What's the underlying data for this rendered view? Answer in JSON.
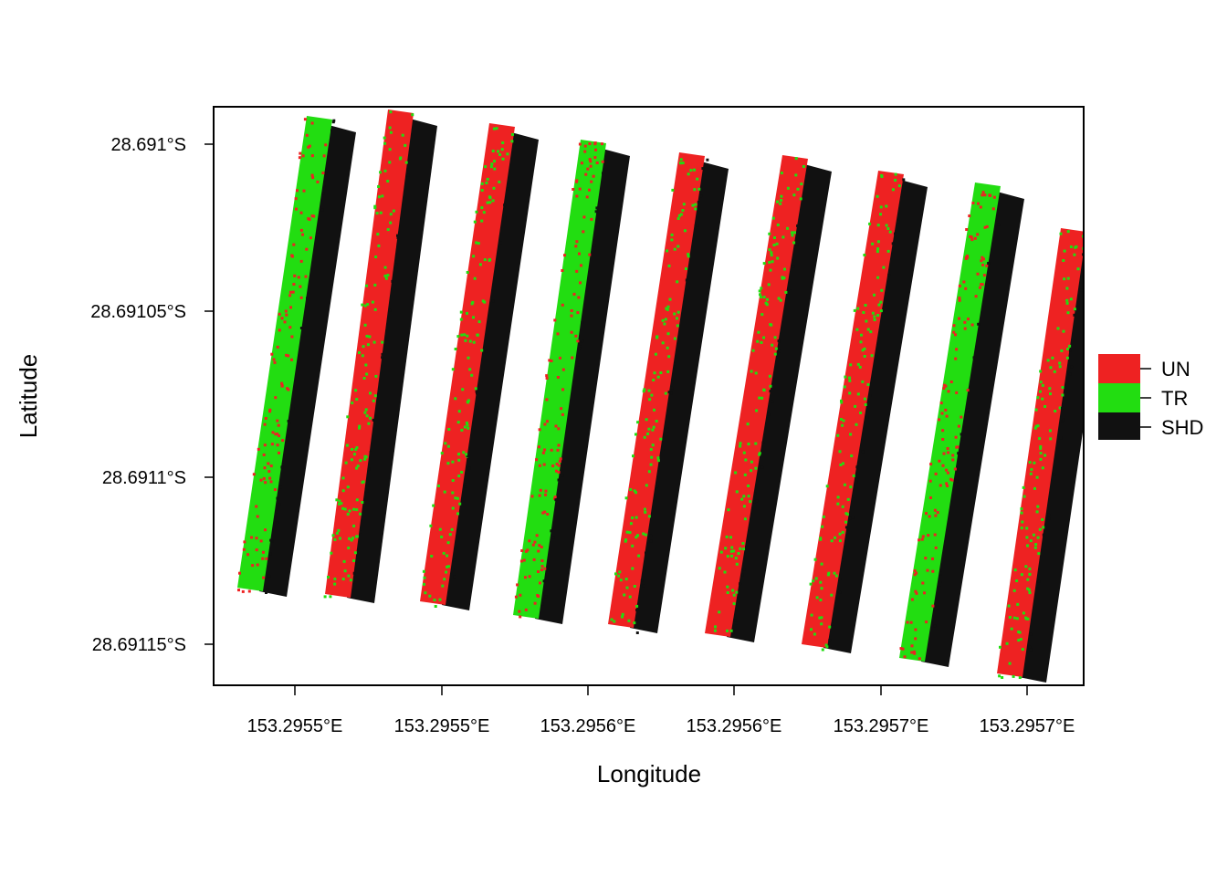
{
  "chart_data": {
    "type": "heatmap",
    "title": "",
    "xlabel": "Longitude",
    "ylabel": "Latitude",
    "x_ticks": [
      "153.2955°E",
      "153.2955°E",
      "153.2956°E",
      "153.2956°E",
      "153.2957°E",
      "153.2957°E"
    ],
    "y_ticks": [
      "28.691°S",
      "28.69105°S",
      "28.6911°S",
      "28.69115°S"
    ],
    "legend": {
      "placement": "right",
      "entries": [
        {
          "label": "UN",
          "color": "#ee2222"
        },
        {
          "label": "TR",
          "color": "#22dd11"
        },
        {
          "label": "SHD",
          "color": "#111111"
        }
      ]
    },
    "grid": false,
    "rows_shown": 9,
    "row_composition": [
      {
        "row": 1,
        "dominant": "TR"
      },
      {
        "row": 2,
        "dominant": "UN"
      },
      {
        "row": 3,
        "dominant": "UN"
      },
      {
        "row": 4,
        "dominant": "TR"
      },
      {
        "row": 5,
        "dominant": "UN"
      },
      {
        "row": 6,
        "dominant": "UN"
      },
      {
        "row": 7,
        "dominant": "UN"
      },
      {
        "row": 8,
        "dominant": "TR"
      },
      {
        "row": 9,
        "dominant": "UN"
      }
    ]
  }
}
